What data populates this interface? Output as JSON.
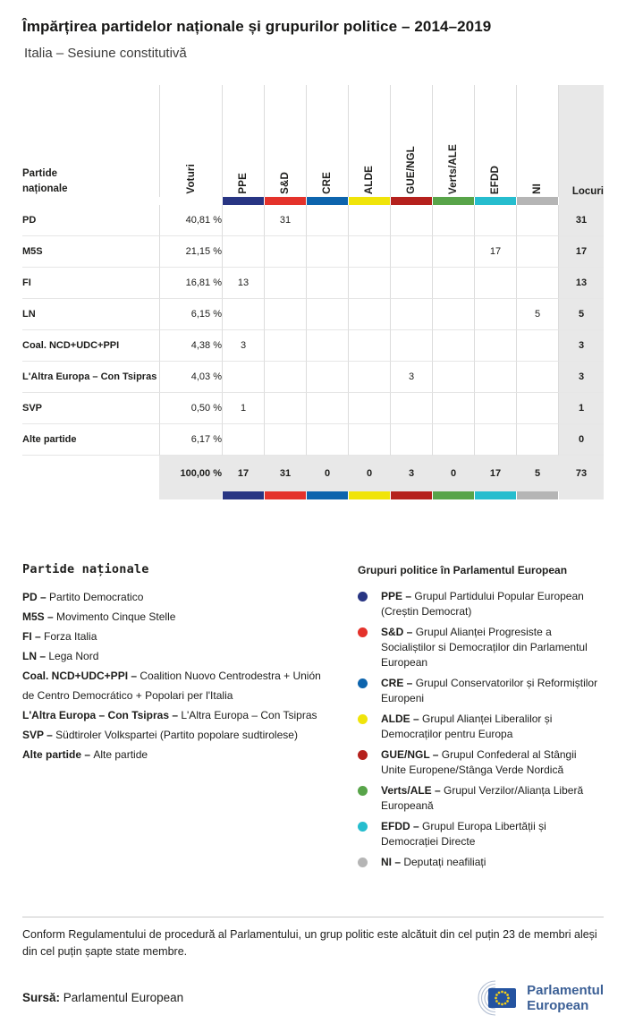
{
  "chart_data": {
    "type": "table",
    "title": "Împărțirea partidelor naționale și grupurilor politice – 2014–2019",
    "subtitle": "Italia – Sesiune constitutivă",
    "row_header_label": "Partide naționale",
    "votes_col_label": "Voturi",
    "seats_col_label": "Locuri",
    "groups": [
      {
        "id": "ppe",
        "label": "PPE",
        "color": "#283583"
      },
      {
        "id": "sd",
        "label": "S&D",
        "color": "#e4322b"
      },
      {
        "id": "cre",
        "label": "CRE",
        "color": "#0d64ad"
      },
      {
        "id": "alde",
        "label": "ALDE",
        "color": "#f0e40a"
      },
      {
        "id": "gue-ngl",
        "label": "GUE/NGL",
        "color": "#b5211d"
      },
      {
        "id": "verts-ale",
        "label": "Verts/ALE",
        "color": "#58a449"
      },
      {
        "id": "efdd",
        "label": "EFDD",
        "color": "#26bdce"
      },
      {
        "id": "ni",
        "label": "NI",
        "color": "#b5b5b5"
      }
    ],
    "rows": [
      {
        "party": "PD",
        "votes_pct": "40,81 %",
        "seats_by_group": [
          "",
          "31",
          "",
          "",
          "",
          "",
          "",
          ""
        ],
        "seats_total": "31"
      },
      {
        "party": "M5S",
        "votes_pct": "21,15 %",
        "seats_by_group": [
          "",
          "",
          "",
          "",
          "",
          "",
          "17",
          ""
        ],
        "seats_total": "17"
      },
      {
        "party": "FI",
        "votes_pct": "16,81 %",
        "seats_by_group": [
          "13",
          "",
          "",
          "",
          "",
          "",
          "",
          ""
        ],
        "seats_total": "13"
      },
      {
        "party": "LN",
        "votes_pct": "6,15 %",
        "seats_by_group": [
          "",
          "",
          "",
          "",
          "",
          "",
          "",
          "5"
        ],
        "seats_total": "5"
      },
      {
        "party": "Coal. NCD+UDC+PPI",
        "votes_pct": "4,38 %",
        "seats_by_group": [
          "3",
          "",
          "",
          "",
          "",
          "",
          "",
          ""
        ],
        "seats_total": "3"
      },
      {
        "party": "L'Altra Europa – Con Tsipras",
        "votes_pct": "4,03 %",
        "seats_by_group": [
          "",
          "",
          "",
          "",
          "3",
          "",
          "",
          ""
        ],
        "seats_total": "3"
      },
      {
        "party": "SVP",
        "votes_pct": "0,50 %",
        "seats_by_group": [
          "1",
          "",
          "",
          "",
          "",
          "",
          "",
          ""
        ],
        "seats_total": "1"
      },
      {
        "party": "Alte partide",
        "votes_pct": "6,17 %",
        "seats_by_group": [
          "",
          "",
          "",
          "",
          "",
          "",
          "",
          ""
        ],
        "seats_total": "0"
      }
    ],
    "total": {
      "votes_pct": "100,00 %",
      "seats_by_group": [
        "17",
        "31",
        "0",
        "0",
        "3",
        "0",
        "17",
        "5"
      ],
      "seats_total": "73"
    }
  },
  "legend_parties": {
    "heading": "Partide naționale",
    "items": [
      {
        "abbr": "PD –",
        "name": "Partito Democratico"
      },
      {
        "abbr": "M5S –",
        "name": "Movimento Cinque Stelle"
      },
      {
        "abbr": "FI –",
        "name": "Forza Italia"
      },
      {
        "abbr": "LN –",
        "name": "Lega Nord"
      },
      {
        "abbr": "Coal. NCD+UDC+PPI –",
        "name": "Coalition Nuovo Centrodestra + Unión de Centro Democrático + Popolari per l'Italia"
      },
      {
        "abbr": "L'Altra Europa – Con Tsipras –",
        "name": "L'Altra Europa – Con Tsipras"
      },
      {
        "abbr": "SVP –",
        "name": "Südtiroler Volkspartei (Partito popolare sudtirolese)"
      },
      {
        "abbr": "Alte partide –",
        "name": "Alte partide"
      }
    ]
  },
  "legend_groups": {
    "heading": "Grupuri politice în Parlamentul European",
    "items": [
      {
        "abbr": "PPE –",
        "color": "#283583",
        "name": "Grupul Partidului Popular European (Creștin Democrat)"
      },
      {
        "abbr": "S&D –",
        "color": "#e4322b",
        "name": "Grupul Alianței Progresiste a Socialiștilor si Democraților din Parlamentul European"
      },
      {
        "abbr": "CRE –",
        "color": "#0d64ad",
        "name": "Grupul Conservatorilor și Reformiștilor Europeni"
      },
      {
        "abbr": "ALDE –",
        "color": "#f0e40a",
        "name": "Grupul Alianței Liberalilor și Democraților pentru Europa"
      },
      {
        "abbr": "GUE/NGL –",
        "color": "#b5211d",
        "name": "Grupul Confederal al Stângii Unite Europene/Stânga Verde Nordică"
      },
      {
        "abbr": "Verts/ALE –",
        "color": "#58a449",
        "name": "Grupul Verzilor/Alianța Liberă Europeană"
      },
      {
        "abbr": "EFDD –",
        "color": "#26bdce",
        "name": "Grupul Europa Libertății și Democrației Directe"
      },
      {
        "abbr": "NI –",
        "color": "#b5b5b5",
        "name": "Deputați neafiliați"
      }
    ]
  },
  "footer": {
    "note": "Conform Regulamentului de procedură al Parlamentului, un grup politic este alcătuit din cel puțin 23 de membri aleși din cel puțin șapte state membre.",
    "source_label": "Sursă:",
    "source_text": "Parlamentul European",
    "logo_line1": "Parlamentul",
    "logo_line2": "European"
  }
}
